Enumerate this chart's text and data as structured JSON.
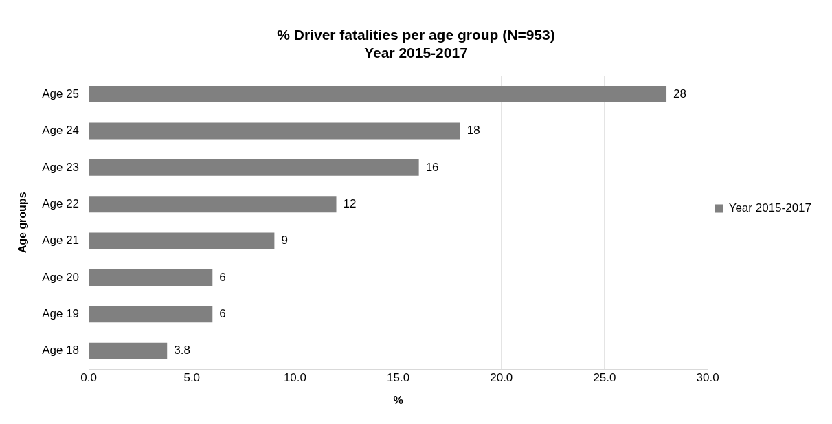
{
  "chart_data": {
    "type": "bar",
    "orientation": "horizontal",
    "title": "% Driver fatalities per age group (N=953)\nYear 2015-2017",
    "xlabel": "%",
    "ylabel": "Age groups",
    "categories": [
      "Age 25",
      "Age 24",
      "Age 23",
      "Age 22",
      "Age 21",
      "Age 20",
      "Age 19",
      "Age 18"
    ],
    "series": [
      {
        "name": "Year 2015-2017",
        "color": "#808080",
        "values": [
          28,
          18,
          16,
          12,
          9,
          6,
          6,
          3.8
        ]
      }
    ],
    "xlim": [
      0,
      30
    ],
    "xticks": [
      {
        "value": 0,
        "label": "0.0"
      },
      {
        "value": 5,
        "label": "5.0"
      },
      {
        "value": 10,
        "label": "10.0"
      },
      {
        "value": 15,
        "label": "15.0"
      },
      {
        "value": 20,
        "label": "20.0"
      },
      {
        "value": 25,
        "label": "25.0"
      },
      {
        "value": 30,
        "label": "30.0"
      }
    ],
    "grid": "x",
    "legend": "right",
    "data_labels": true
  }
}
